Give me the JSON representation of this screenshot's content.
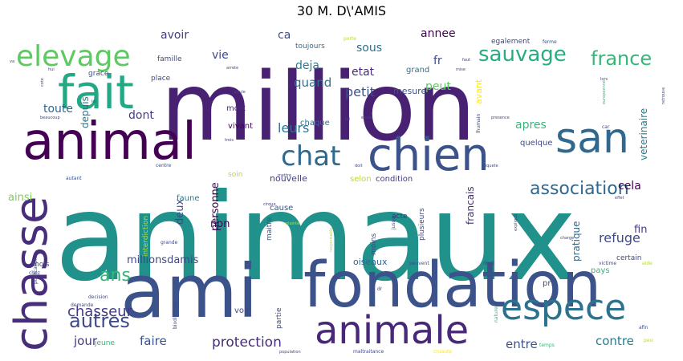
{
  "chart_data": {
    "type": "wordcloud",
    "title": "30 M. D\\'AMIS",
    "background": "#ffffff",
    "words": [
      {
        "text": "animaux",
        "weight": 100,
        "color": "#21918c"
      },
      {
        "text": "million",
        "weight": 78,
        "color": "#482173"
      },
      {
        "text": "ami",
        "weight": 62,
        "color": "#3b528b"
      },
      {
        "text": "fondation",
        "weight": 52,
        "color": "#3b528b"
      },
      {
        "text": "animal",
        "weight": 48,
        "color": "#440154"
      },
      {
        "text": "chasse",
        "weight": 44,
        "color": "#472d7b"
      },
      {
        "text": "fait",
        "weight": 42,
        "color": "#22a884"
      },
      {
        "text": "chien",
        "weight": 40,
        "color": "#3b528b"
      },
      {
        "text": "san",
        "weight": 38,
        "color": "#31688e"
      },
      {
        "text": "animale",
        "weight": 36,
        "color": "#482878"
      },
      {
        "text": "espece",
        "weight": 32,
        "color": "#2c728e"
      },
      {
        "text": "elevage",
        "weight": 30,
        "color": "#5ec962"
      },
      {
        "text": "chat",
        "weight": 28,
        "color": "#31688e"
      },
      {
        "text": "sauvage",
        "weight": 24,
        "color": "#27ad81"
      },
      {
        "text": "france",
        "weight": 22,
        "color": "#35b779"
      },
      {
        "text": "association",
        "weight": 20,
        "color": "#31688e"
      },
      {
        "text": "autres",
        "weight": 19,
        "color": "#3e4989"
      },
      {
        "text": "ans",
        "weight": 17,
        "color": "#35b779"
      },
      {
        "text": "chasseur",
        "weight": 16,
        "color": "#443a83"
      },
      {
        "text": "protection",
        "weight": 15,
        "color": "#472d7b"
      },
      {
        "text": "leurs",
        "weight": 14,
        "color": "#2c728e"
      },
      {
        "text": "refuge",
        "weight": 14,
        "color": "#3e4989"
      },
      {
        "text": "contre",
        "weight": 13,
        "color": "#287c8e"
      },
      {
        "text": "faire",
        "weight": 13,
        "color": "#3b528b"
      },
      {
        "text": "entre",
        "weight": 13,
        "color": "#3b528b"
      },
      {
        "text": "jour",
        "weight": 13,
        "color": "#443a83"
      },
      {
        "text": "quand",
        "weight": 13,
        "color": "#2c728e"
      },
      {
        "text": "petit",
        "weight": 12,
        "color": "#3b528b"
      },
      {
        "text": "etat",
        "weight": 12,
        "color": "#472d7b"
      },
      {
        "text": "deja",
        "weight": 12,
        "color": "#287c8e"
      },
      {
        "text": "ca",
        "weight": 12,
        "color": "#3e4989"
      },
      {
        "text": "avoir",
        "weight": 12,
        "color": "#433e85"
      },
      {
        "text": "vie",
        "weight": 12,
        "color": "#3e4989"
      },
      {
        "text": "sous",
        "weight": 12,
        "color": "#2c728e"
      },
      {
        "text": "annee",
        "weight": 12,
        "color": "#440154"
      },
      {
        "text": "fr",
        "weight": 12,
        "color": "#3e4989"
      },
      {
        "text": "peut",
        "weight": 12,
        "color": "#5ec962"
      },
      {
        "text": "toute",
        "weight": 12,
        "color": "#31688e"
      },
      {
        "text": "dont",
        "weight": 12,
        "color": "#433e85"
      },
      {
        "text": "apres",
        "weight": 12,
        "color": "#35b779"
      },
      {
        "text": "cela",
        "weight": 12,
        "color": "#440154"
      },
      {
        "text": "fin",
        "weight": 12,
        "color": "#443a83"
      },
      {
        "text": "millionsdamis",
        "weight": 12,
        "color": "#3e4989"
      },
      {
        "text": "personne",
        "weight": 12,
        "color": "#440154"
      },
      {
        "text": "deux",
        "weight": 11,
        "color": "#3e4989"
      },
      {
        "text": "non",
        "weight": 11,
        "color": "#440154"
      },
      {
        "text": "veterinaire",
        "weight": 11,
        "color": "#287c8e"
      },
      {
        "text": "francais",
        "weight": 11,
        "color": "#472d7b"
      },
      {
        "text": "ainsi",
        "weight": 11,
        "color": "#7ad151"
      },
      {
        "text": "depuis",
        "weight": 11,
        "color": "#2c728e"
      },
      {
        "text": "pratique",
        "weight": 11,
        "color": "#31688e"
      },
      {
        "text": "oiseaux",
        "weight": 10,
        "color": "#31688e"
      },
      {
        "text": "nouvelle",
        "weight": 10,
        "color": "#433e85"
      },
      {
        "text": "avant",
        "weight": 10,
        "color": "#fde725"
      },
      {
        "text": "mesure",
        "weight": 10,
        "color": "#3b528b"
      },
      {
        "text": "grand",
        "weight": 10,
        "color": "#2c728e"
      },
      {
        "text": "pays",
        "weight": 9,
        "color": "#35b779"
      },
      {
        "text": "voir",
        "weight": 9,
        "color": "#3e4989"
      },
      {
        "text": "vivant",
        "weight": 9,
        "color": "#440154"
      },
      {
        "text": "mort",
        "weight": 9,
        "color": "#482878"
      },
      {
        "text": "quelque",
        "weight": 9,
        "color": "#3e4989"
      },
      {
        "text": "chaque",
        "weight": 9,
        "color": "#2c728e"
      },
      {
        "text": "selon",
        "weight": 9,
        "color": "#b5de2b"
      },
      {
        "text": "condition",
        "weight": 9,
        "color": "#433e85"
      },
      {
        "text": "faune",
        "weight": 9,
        "color": "#287c8e"
      },
      {
        "text": "cause",
        "weight": 9,
        "color": "#3b528b"
      },
      {
        "text": "acte",
        "weight": 8,
        "color": "#472d7b"
      },
      {
        "text": "certain",
        "weight": 8,
        "color": "#3e4989"
      },
      {
        "text": "mois",
        "weight": 8,
        "color": "#3b528b"
      },
      {
        "text": "interdiction",
        "weight": 8,
        "color": "#b5de2b"
      },
      {
        "text": "toujours",
        "weight": 8,
        "color": "#2c728e"
      },
      {
        "text": "famille",
        "weight": 8,
        "color": "#3e4989"
      },
      {
        "text": "place",
        "weight": 8,
        "color": "#3e4989"
      },
      {
        "text": "grace",
        "weight": 8,
        "color": "#3b528b"
      },
      {
        "text": "egalement",
        "weight": 8,
        "color": "#3e4989"
      },
      {
        "text": "partie",
        "weight": 8,
        "color": "#3e4989"
      },
      {
        "text": "plusieurs",
        "weight": 8,
        "color": "#3e4989"
      },
      {
        "text": "moins",
        "weight": 8,
        "color": "#3e4989"
      },
      {
        "text": "jeune",
        "weight": 8,
        "color": "#35b779"
      },
      {
        "text": "pri",
        "weight": 8,
        "color": "#3e4989"
      },
      {
        "text": "soin",
        "weight": 8,
        "color": "#b5de2b"
      },
      {
        "text": "maitre",
        "weight": 8,
        "color": "#3b528b"
      },
      {
        "text": "autant",
        "weight": 6,
        "color": "#3b528b"
      },
      {
        "text": "publication",
        "weight": 6,
        "color": "#3e4989"
      },
      {
        "text": "chez",
        "weight": 6,
        "color": "#3b528b"
      },
      {
        "text": "decision",
        "weight": 6,
        "color": "#3e4989"
      },
      {
        "text": "demande",
        "weight": 6,
        "color": "#3e4989"
      },
      {
        "text": "nature",
        "weight": 6,
        "color": "#35b779"
      },
      {
        "text": "afin",
        "weight": 6,
        "color": "#3e4989"
      },
      {
        "text": "aide",
        "weight": 6,
        "color": "#b5de2b"
      },
      {
        "text": "peu",
        "weight": 6,
        "color": "#b5de2b"
      },
      {
        "text": "temps",
        "weight": 6,
        "color": "#35b779"
      },
      {
        "text": "cruaute",
        "weight": 6,
        "color": "#fde725"
      },
      {
        "text": "maltraitance",
        "weight": 6,
        "color": "#3e4989"
      },
      {
        "text": "population",
        "weight": 5,
        "color": "#3e4989"
      },
      {
        "text": "biodiversite",
        "weight": 6,
        "color": "#3e4989"
      },
      {
        "text": "droit",
        "weight": 6,
        "color": "#3e4989"
      },
      {
        "text": "peuvent",
        "weight": 6,
        "color": "#3e4989"
      },
      {
        "text": "victime",
        "weight": 6,
        "color": "#3e4989"
      },
      {
        "text": "grande",
        "weight": 6,
        "color": "#3e4989"
      },
      {
        "text": "responsable",
        "weight": 5,
        "color": "#b5de2b"
      },
      {
        "text": "porte",
        "weight": 6,
        "color": "#b5de2b"
      },
      {
        "text": "arrete",
        "weight": 5,
        "color": "#3e4989"
      },
      {
        "text": "poule",
        "weight": 5,
        "color": "#3e4989"
      },
      {
        "text": "centre",
        "weight": 6,
        "color": "#3e4989"
      },
      {
        "text": "lhumain",
        "weight": 6,
        "color": "#3e4989"
      },
      {
        "text": "car",
        "weight": 6,
        "color": "#3e4989"
      },
      {
        "text": "ferme",
        "weight": 6,
        "color": "#3e4989"
      },
      {
        "text": "faut",
        "weight": 5,
        "color": "#3e4989"
      },
      {
        "text": "mise",
        "weight": 5,
        "color": "#3e4989"
      },
      {
        "text": "etude",
        "weight": 5,
        "color": "#3e4989"
      },
      {
        "text": "trois",
        "weight": 5,
        "color": "#3e4989"
      },
      {
        "text": "cote",
        "weight": 5,
        "color": "#3e4989"
      },
      {
        "text": "hui",
        "weight": 5,
        "color": "#3e4989"
      },
      {
        "text": "loi",
        "weight": 5,
        "color": "#3e4989"
      },
      {
        "text": "va",
        "weight": 5,
        "color": "#3e4989"
      },
      {
        "text": "europeenne",
        "weight": 5,
        "color": "#35b779"
      },
      {
        "text": "retrouve",
        "weight": 5,
        "color": "#3e4989"
      },
      {
        "text": "lors",
        "weight": 5,
        "color": "#3e4989"
      },
      {
        "text": "cirque",
        "weight": 5,
        "color": "#3e4989"
      },
      {
        "text": "plainte",
        "weight": 5,
        "color": "#b5de2b"
      },
      {
        "text": "jusqu",
        "weight": 6,
        "color": "#3e4989"
      },
      {
        "text": "explique",
        "weight": 5,
        "color": "#3e4989"
      },
      {
        "text": "charge",
        "weight": 5,
        "color": "#3e4989"
      },
      {
        "text": "effet",
        "weight": 5,
        "color": "#3e4989"
      },
      {
        "text": "mettre",
        "weight": 5,
        "color": "#3e4989"
      },
      {
        "text": "enquete",
        "weight": 5,
        "color": "#3e4989"
      },
      {
        "text": "doit",
        "weight": 5,
        "color": "#3e4989"
      },
      {
        "text": "beaucoup",
        "weight": 5,
        "color": "#3e4989"
      },
      {
        "text": "presence",
        "weight": 5,
        "color": "#3e4989"
      },
      {
        "text": "lui",
        "weight": 5,
        "color": "#3e4989"
      },
      {
        "text": "dr",
        "weight": 5,
        "color": "#3e4989"
      },
      {
        "text": "pre",
        "weight": 5,
        "color": "#3e4989"
      }
    ]
  }
}
